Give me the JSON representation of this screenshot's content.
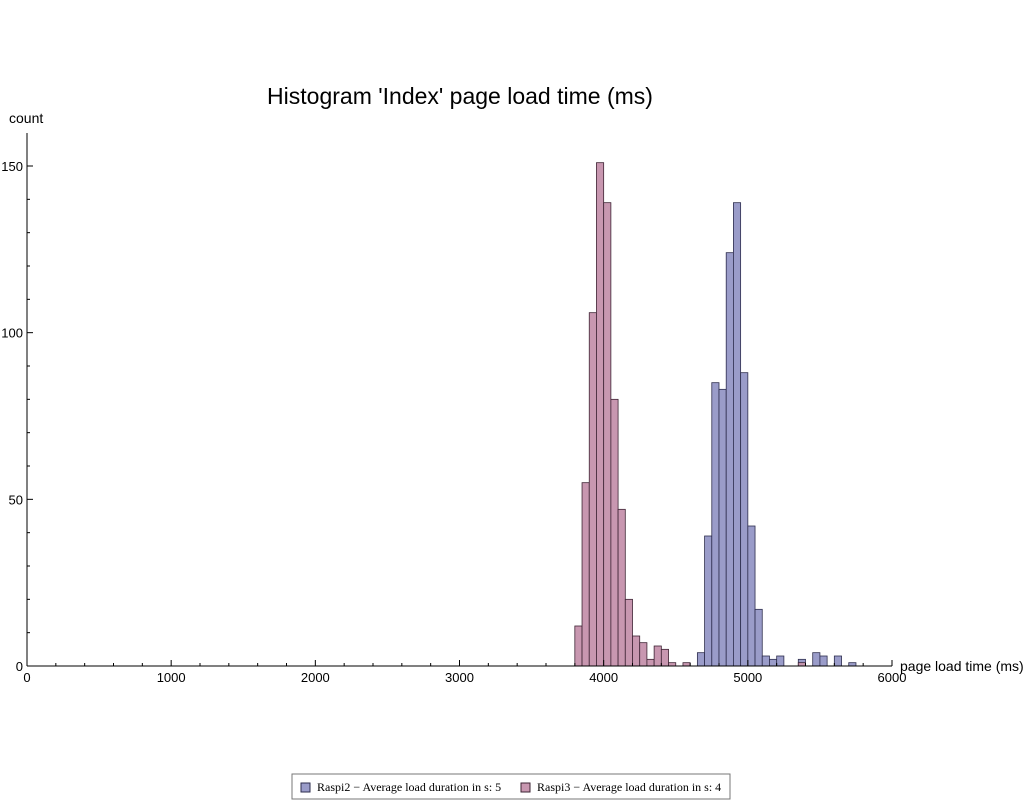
{
  "chart_data": {
    "type": "bar",
    "title": "Histogram 'Index' page load time (ms)",
    "xlabel": "page load time (ms)",
    "ylabel": "count",
    "xlim": [
      0,
      6000
    ],
    "ylim": [
      0,
      160
    ],
    "bin_width": 50,
    "x_ticks": [
      0,
      1000,
      2000,
      3000,
      4000,
      5000,
      6000
    ],
    "y_ticks": [
      0,
      50,
      100,
      150
    ],
    "grid": false,
    "legend_position": "bottom-center",
    "series": [
      {
        "name": "Raspi2 − Average load duration in s: 5",
        "color": "#9a9cc9",
        "edge_color": "#2e2e4e",
        "bins": [
          {
            "x0": 4650,
            "count": 4
          },
          {
            "x0": 4700,
            "count": 39
          },
          {
            "x0": 4750,
            "count": 85
          },
          {
            "x0": 4800,
            "count": 83
          },
          {
            "x0": 4850,
            "count": 124
          },
          {
            "x0": 4900,
            "count": 139
          },
          {
            "x0": 4950,
            "count": 88
          },
          {
            "x0": 5000,
            "count": 42
          },
          {
            "x0": 5050,
            "count": 17
          },
          {
            "x0": 5100,
            "count": 3
          },
          {
            "x0": 5150,
            "count": 2
          },
          {
            "x0": 5200,
            "count": 3
          },
          {
            "x0": 5350,
            "count": 2
          },
          {
            "x0": 5450,
            "count": 4
          },
          {
            "x0": 5500,
            "count": 3
          },
          {
            "x0": 5600,
            "count": 3
          },
          {
            "x0": 5700,
            "count": 1
          }
        ]
      },
      {
        "name": "Raspi3 − Average load duration in s: 4",
        "color": "#c897b0",
        "edge_color": "#3e2434",
        "bins": [
          {
            "x0": 3800,
            "count": 12
          },
          {
            "x0": 3850,
            "count": 55
          },
          {
            "x0": 3900,
            "count": 106
          },
          {
            "x0": 3950,
            "count": 151
          },
          {
            "x0": 4000,
            "count": 139
          },
          {
            "x0": 4050,
            "count": 80
          },
          {
            "x0": 4100,
            "count": 47
          },
          {
            "x0": 4150,
            "count": 20
          },
          {
            "x0": 4200,
            "count": 9
          },
          {
            "x0": 4250,
            "count": 7
          },
          {
            "x0": 4300,
            "count": 2
          },
          {
            "x0": 4350,
            "count": 6
          },
          {
            "x0": 4400,
            "count": 5
          },
          {
            "x0": 4450,
            "count": 1
          },
          {
            "x0": 4550,
            "count": 1
          },
          {
            "x0": 5350,
            "count": 1
          }
        ]
      }
    ]
  }
}
